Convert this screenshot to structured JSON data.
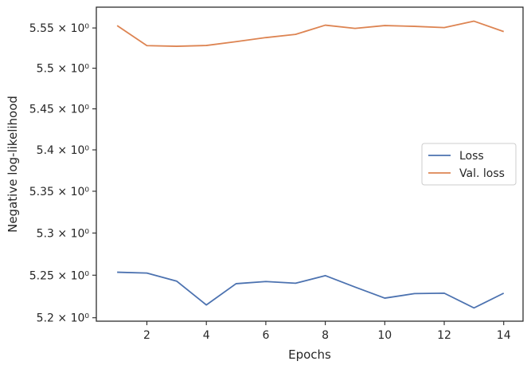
{
  "chart_data": {
    "type": "line",
    "title": "",
    "xlabel": "Epochs",
    "ylabel": "Negative log-likelihood",
    "scale": "log",
    "x": [
      1,
      2,
      3,
      4,
      5,
      6,
      7,
      8,
      9,
      10,
      11,
      12,
      13,
      14
    ],
    "xlim": [
      0.3,
      14.65
    ],
    "ylim": [
      5.196,
      5.576
    ],
    "xticks": [
      2,
      4,
      6,
      8,
      10,
      12,
      14
    ],
    "xtick_labels": [
      "2",
      "4",
      "6",
      "8",
      "10",
      "12",
      "14"
    ],
    "yticks": [
      5.2,
      5.25,
      5.3,
      5.35,
      5.4,
      5.45,
      5.5,
      5.55
    ],
    "ytick_labels": [
      "5.2 × 10⁰",
      "5.25 × 10⁰",
      "5.3 × 10⁰",
      "5.35 × 10⁰",
      "5.4 × 10⁰",
      "5.45 × 10⁰",
      "5.5 × 10⁰",
      "5.55 × 10⁰"
    ],
    "grid": false,
    "legend_position": "center-right",
    "series": [
      {
        "name": "Loss",
        "color": "#4c72b0",
        "values": [
          5.2535,
          5.2525,
          5.243,
          5.215,
          5.24,
          5.2425,
          5.2405,
          5.2495,
          5.236,
          5.223,
          5.2283,
          5.2288,
          5.2115,
          5.2288
        ]
      },
      {
        "name": "Val. loss",
        "color": "#dd8452",
        "values": [
          5.553,
          5.528,
          5.5272,
          5.5282,
          5.533,
          5.538,
          5.542,
          5.5535,
          5.5495,
          5.553,
          5.552,
          5.5505,
          5.5585,
          5.5455
        ]
      }
    ]
  }
}
